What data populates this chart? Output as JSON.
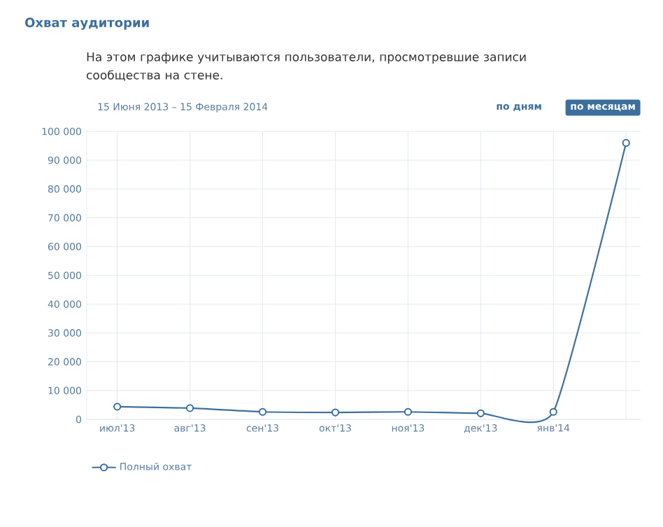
{
  "chart_data": {
    "type": "line",
    "title": "Охват аудитории",
    "subtitle": "На этом графике учитываются пользователи, просмотревшие записи сообщества на стене.",
    "annotations": [
      "15 Июня 2013 – 15 Февраля 2014",
      "по дням",
      "по месяцам"
    ],
    "categories": [
      "июл'13",
      "авг'13",
      "сен'13",
      "окт'13",
      "ноя'13",
      "дек'13",
      "янв'14",
      null
    ],
    "series": [
      {
        "name": "Полный охват",
        "color": "#3d6f9e",
        "values": [
          4400,
          3900,
          2600,
          2400,
          2600,
          2100,
          2600,
          96000
        ]
      }
    ],
    "ylim": [
      0,
      100000
    ],
    "yticks": [
      {
        "value": 0,
        "label": "0"
      },
      {
        "value": 10000,
        "label": "10 000"
      },
      {
        "value": 20000,
        "label": "20 000"
      },
      {
        "value": 30000,
        "label": "30 000"
      },
      {
        "value": 40000,
        "label": "40 000"
      },
      {
        "value": 50000,
        "label": "50 000"
      },
      {
        "value": 60000,
        "label": "60 000"
      },
      {
        "value": 70000,
        "label": "70 000"
      },
      {
        "value": 80000,
        "label": "80 000"
      },
      {
        "value": 90000,
        "label": "90 000"
      },
      {
        "value": 100000,
        "label": "100 000"
      }
    ],
    "grid": true,
    "legend": "bottom left",
    "marker": "circle",
    "line_style": "solid"
  }
}
